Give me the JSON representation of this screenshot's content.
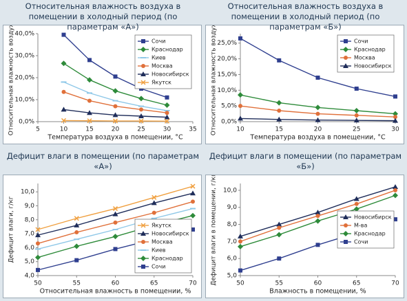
{
  "chart_data": [
    {
      "type": "line",
      "title": "Относительная влажность воздуха в помещении в холодный период (по параметрам «А»)",
      "xlabel": "Температура воздуха в помещении, °С",
      "ylabel": "Относительная влажность воздуха",
      "xlim": [
        5,
        35
      ],
      "xticks": [
        5,
        10,
        15,
        20,
        25,
        30,
        35
      ],
      "ylim": [
        0,
        40
      ],
      "yticks": [
        {
          "value": 0,
          "label": "0,0%"
        },
        {
          "value": 10,
          "label": "10,0%"
        },
        {
          "value": 20,
          "label": "20,0%"
        },
        {
          "value": 30,
          "label": "30,0%"
        },
        {
          "value": 40,
          "label": "40,0%"
        }
      ],
      "legend": "upper right",
      "x": [
        10,
        15,
        20,
        25,
        30
      ],
      "series": [
        {
          "name": "Сочи",
          "color": "#2f3f8f",
          "marker": "square",
          "values": [
            39.5,
            28,
            20.5,
            15,
            11
          ]
        },
        {
          "name": "Краснодар",
          "color": "#2e8b3a",
          "marker": "diamond",
          "values": [
            26.5,
            19,
            14,
            10.5,
            7.5
          ]
        },
        {
          "name": "Киев",
          "color": "#8fc8e8",
          "marker": "dash",
          "values": [
            18,
            13,
            9.5,
            7,
            5
          ]
        },
        {
          "name": "Москва",
          "color": "#e0703a",
          "marker": "circle",
          "values": [
            13.5,
            9.5,
            7,
            5.5,
            4
          ]
        },
        {
          "name": "Новосибирск",
          "color": "#1f2d5a",
          "marker": "triangle",
          "values": [
            5.5,
            4,
            3,
            2.5,
            2
          ]
        },
        {
          "name": "Якутск",
          "color": "#f0a040",
          "marker": "x",
          "values": [
            0.5,
            0.4,
            0.3,
            0.3,
            0.2
          ]
        }
      ]
    },
    {
      "type": "line",
      "title": "Относительная влажность воздуха в помещении в холодный период (по параметрам «Б»)",
      "xlabel": "Температура воздуха в помещении, °С",
      "ylabel": "Относительная влажность воздуха",
      "xlim": [
        10,
        30
      ],
      "xticks": [
        10,
        15,
        20,
        25,
        30
      ],
      "ylim": [
        0,
        28
      ],
      "yticks": [
        {
          "value": 0,
          "label": "0,0%"
        },
        {
          "value": 5,
          "label": "5,0%"
        },
        {
          "value": 10,
          "label": "10,0%"
        },
        {
          "value": 15,
          "label": "15,0%"
        },
        {
          "value": 20,
          "label": "20,0%"
        },
        {
          "value": 25,
          "label": "25,0%"
        }
      ],
      "legend": "upper right",
      "x": [
        10,
        15,
        20,
        25,
        30
      ],
      "series": [
        {
          "name": "Сочи",
          "color": "#2f3f8f",
          "marker": "square",
          "values": [
            26.5,
            19.5,
            14,
            10.5,
            8
          ]
        },
        {
          "name": "Краснодар",
          "color": "#2e8b3a",
          "marker": "diamond",
          "values": [
            8.5,
            6,
            4.5,
            3.5,
            2.5
          ]
        },
        {
          "name": "Москва",
          "color": "#e0703a",
          "marker": "circle",
          "values": [
            5,
            3.5,
            2.5,
            2,
            1.5
          ]
        },
        {
          "name": "Новосибирск",
          "color": "#1f2d5a",
          "marker": "triangle",
          "values": [
            1,
            0.7,
            0.5,
            0.4,
            0.3
          ]
        }
      ]
    },
    {
      "type": "line",
      "title": "Дефицит влаги в помещении (по параметрам «А»)",
      "xlabel": "Относительная влажность в помещении, %",
      "ylabel": "Дефицит влаги, г/кг",
      "xlim": [
        50,
        70
      ],
      "xticks": [
        50,
        55,
        60,
        65,
        70
      ],
      "ylim": [
        4,
        10.6
      ],
      "yticks": [
        {
          "value": 4,
          "label": "4,0"
        },
        {
          "value": 5,
          "label": "5,0"
        },
        {
          "value": 6,
          "label": "6,0"
        },
        {
          "value": 7,
          "label": "7,0"
        },
        {
          "value": 8,
          "label": "8,0"
        },
        {
          "value": 9,
          "label": "9,0"
        },
        {
          "value": 10,
          "label": "10,0"
        }
      ],
      "legend": "lower right",
      "x": [
        50,
        55,
        60,
        65,
        70
      ],
      "series": [
        {
          "name": "Якутск",
          "color": "#f0a040",
          "marker": "x",
          "values": [
            7.3,
            8.1,
            8.8,
            9.6,
            10.4
          ]
        },
        {
          "name": "Новосибирск",
          "color": "#1f2d5a",
          "marker": "triangle",
          "values": [
            6.9,
            7.6,
            8.4,
            9.2,
            9.9
          ]
        },
        {
          "name": "Москва",
          "color": "#e0703a",
          "marker": "circle",
          "values": [
            6.3,
            7.1,
            7.8,
            8.5,
            9.3
          ]
        },
        {
          "name": "Киев",
          "color": "#8fc8e8",
          "marker": "dash",
          "values": [
            5.9,
            6.6,
            7.3,
            8.1,
            8.8
          ]
        },
        {
          "name": "Краснодар",
          "color": "#2e8b3a",
          "marker": "diamond",
          "values": [
            5.3,
            6.1,
            6.8,
            7.6,
            8.3
          ]
        },
        {
          "name": "Сочи",
          "color": "#2f3f8f",
          "marker": "square",
          "values": [
            4.4,
            5.1,
            5.9,
            6.6,
            7.3
          ]
        }
      ]
    },
    {
      "type": "line",
      "title": "Дефицит влаги в помещении (по параметрам «Б»)",
      "xlabel": "Влажность в помещении, %",
      "ylabel": "Дефицит влаги в помещении, г/кг",
      "xlim": [
        50,
        70
      ],
      "xticks": [
        50,
        55,
        60,
        65,
        70
      ],
      "ylim": [
        5,
        10.4
      ],
      "yticks": [
        {
          "value": 5,
          "label": "5,0"
        },
        {
          "value": 6,
          "label": "6,0"
        },
        {
          "value": 7,
          "label": "7,0"
        },
        {
          "value": 8,
          "label": "8,0"
        },
        {
          "value": 9,
          "label": "9,0"
        },
        {
          "value": 10,
          "label": "10,0"
        }
      ],
      "legend": "center right",
      "x": [
        50,
        55,
        60,
        65,
        70
      ],
      "series": [
        {
          "name": "Новосибирск",
          "color": "#1f2d5a",
          "marker": "triangle",
          "values": [
            7.3,
            8.0,
            8.7,
            9.5,
            10.2
          ]
        },
        {
          "name": "М-ва",
          "color": "#e0703a",
          "marker": "circle",
          "values": [
            7.0,
            7.8,
            8.5,
            9.2,
            10.0
          ]
        },
        {
          "name": "Краснодар",
          "color": "#2e8b3a",
          "marker": "diamond",
          "values": [
            6.7,
            7.4,
            8.2,
            8.9,
            9.7
          ]
        },
        {
          "name": "Сочи",
          "color": "#2f3f8f",
          "marker": "square",
          "values": [
            5.3,
            6.0,
            6.8,
            7.5,
            8.3
          ]
        }
      ]
    }
  ]
}
